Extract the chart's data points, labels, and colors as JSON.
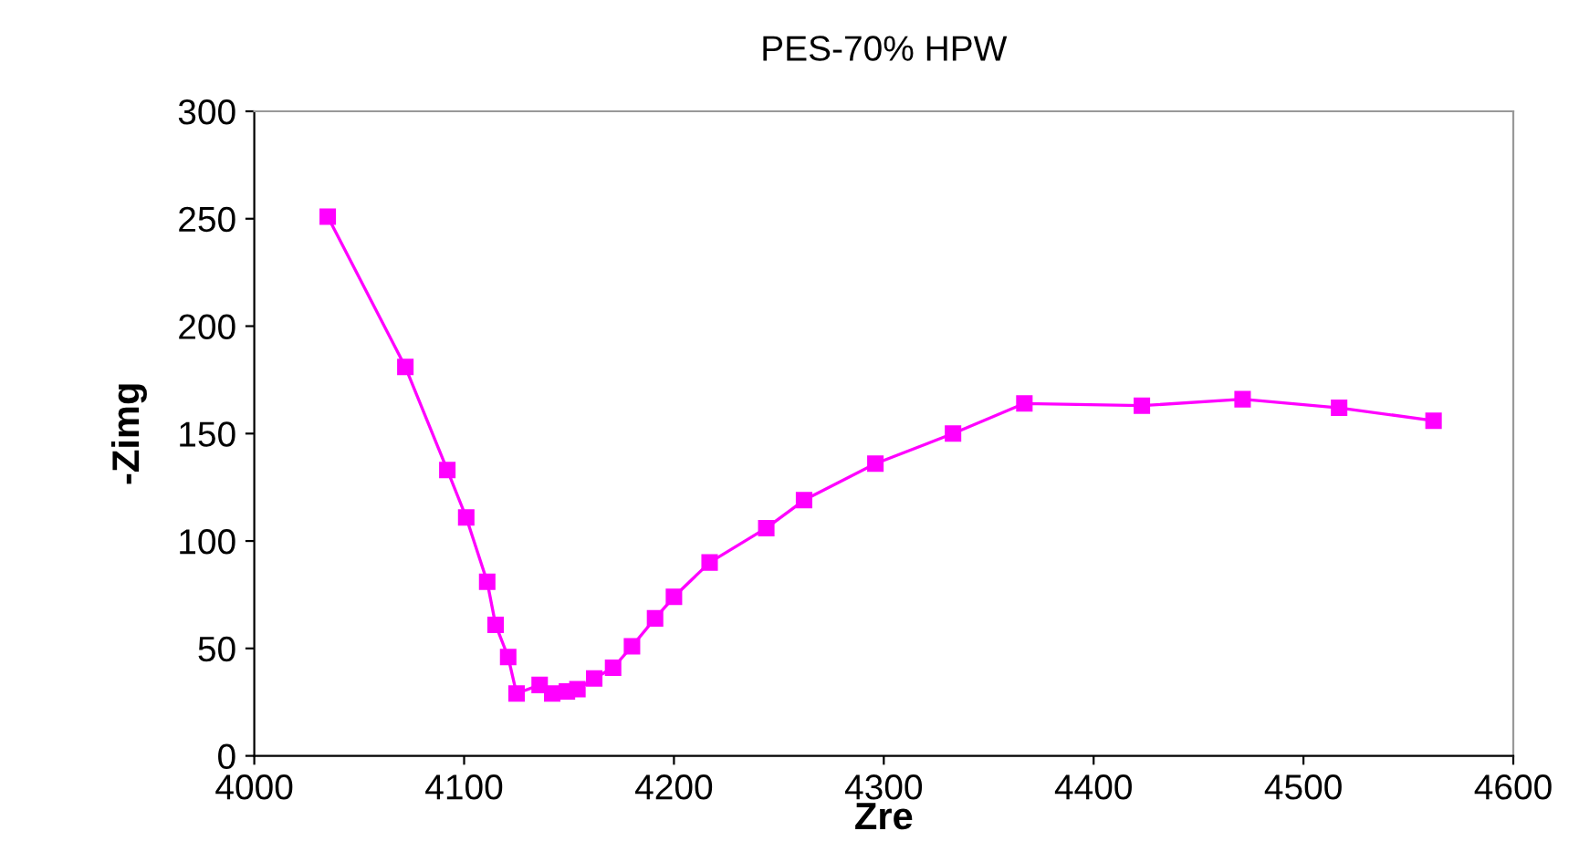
{
  "chart_data": {
    "type": "line",
    "title": "PES-70% HPW",
    "xlabel": "Zre",
    "ylabel": "-Zimg",
    "xlim": [
      4000,
      4600
    ],
    "xticks": [
      4000,
      4100,
      4200,
      4300,
      4400,
      4500,
      4600
    ],
    "ylim": [
      0,
      300
    ],
    "yticks": [
      0,
      50,
      100,
      150,
      200,
      250,
      300
    ],
    "grid": false,
    "legend": false,
    "marker": "square",
    "line_style": "solid",
    "series": [
      {
        "color": "#ff00ff",
        "x": [
          4035,
          4072,
          4092,
          4101,
          4111,
          4115,
          4121,
          4125,
          4136,
          4142,
          4149,
          4154,
          4162,
          4171,
          4180,
          4191,
          4200,
          4217,
          4244,
          4262,
          4296,
          4333,
          4367,
          4423,
          4471,
          4517,
          4562
        ],
        "values": [
          251,
          181,
          133,
          111,
          81,
          61,
          46,
          29,
          33,
          29,
          30,
          31,
          36,
          41,
          51,
          64,
          74,
          90,
          106,
          119,
          136,
          150,
          164,
          163,
          166,
          162,
          156
        ]
      }
    ]
  }
}
